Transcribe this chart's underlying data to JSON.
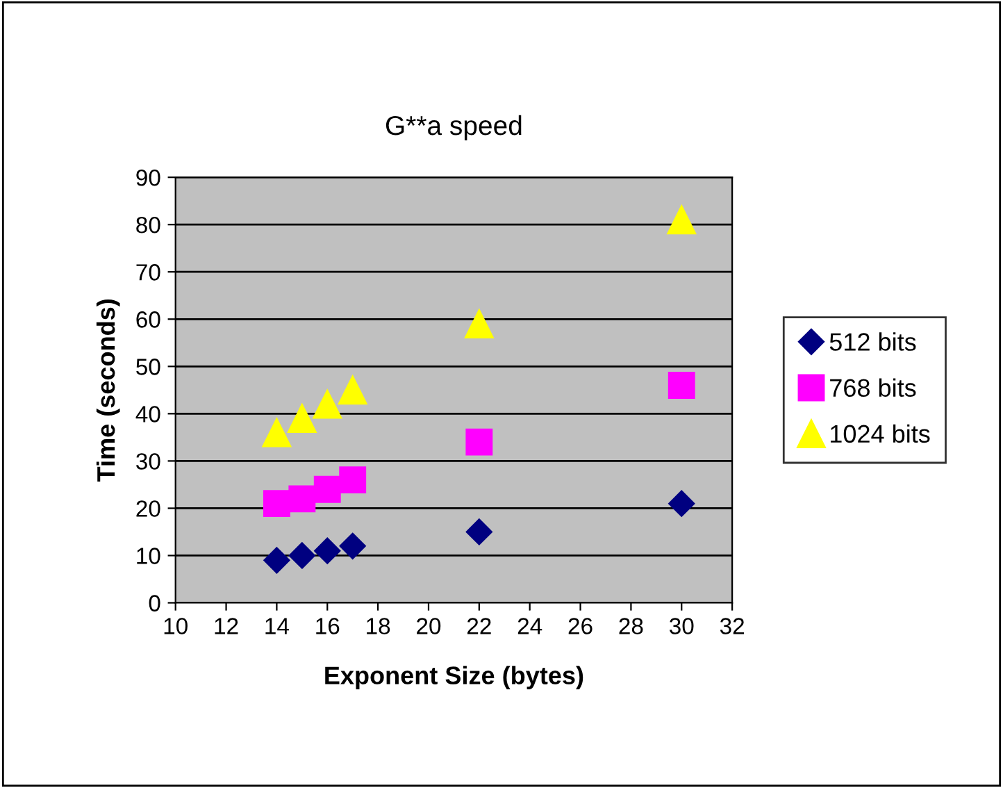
{
  "chart_data": {
    "type": "scatter",
    "title": "G**a speed",
    "xlabel": "Exponent Size (bytes)",
    "ylabel": "Time (seconds)",
    "x": [
      14,
      15,
      16,
      17,
      22,
      30
    ],
    "series": [
      {
        "name": "512 bits",
        "color": "#000080",
        "marker": "diamond",
        "values": [
          9,
          10,
          11,
          12,
          15,
          21
        ]
      },
      {
        "name": "768 bits",
        "color": "#ff00ff",
        "marker": "square",
        "values": [
          21,
          22,
          24,
          26,
          34,
          46
        ]
      },
      {
        "name": "1024 bits",
        "color": "#ffff00",
        "marker": "triangle",
        "values": [
          36,
          39,
          42,
          45,
          59,
          81
        ]
      }
    ],
    "xlim": [
      10,
      32
    ],
    "xticks": [
      10,
      12,
      14,
      16,
      18,
      20,
      22,
      24,
      26,
      28,
      30,
      32
    ],
    "ylim": [
      0,
      90
    ],
    "yticks": [
      0,
      10,
      20,
      30,
      40,
      50,
      60,
      70,
      80,
      90
    ],
    "grid": "y",
    "legend": "right"
  }
}
